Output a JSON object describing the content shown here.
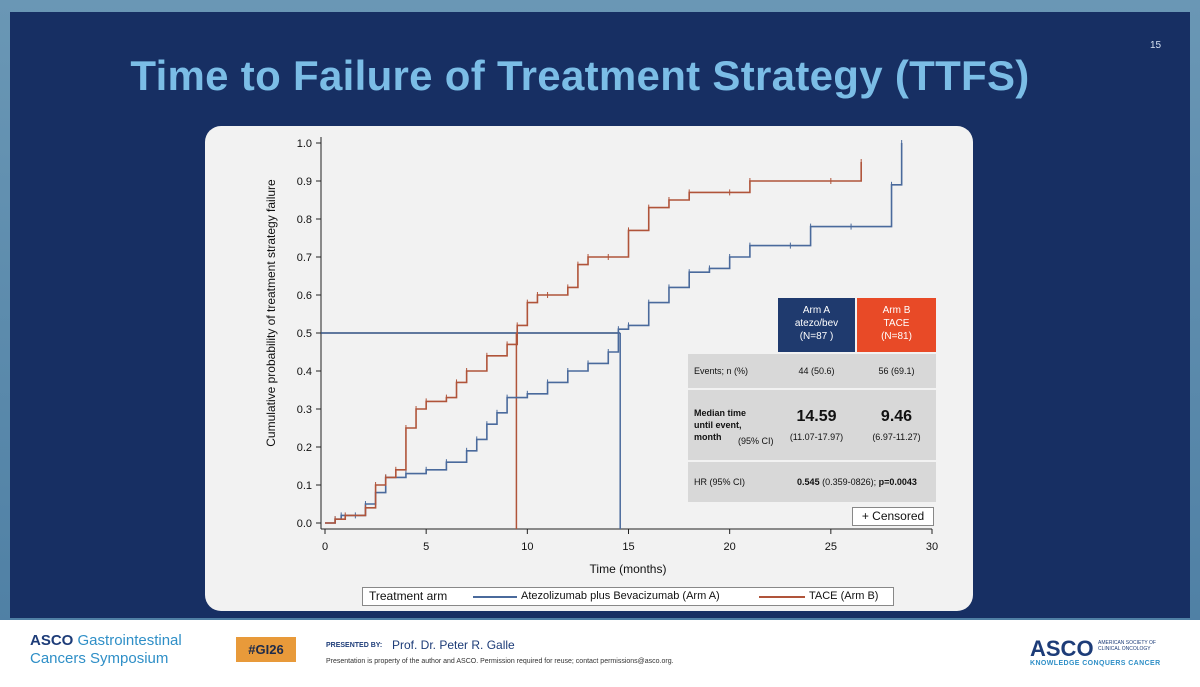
{
  "slide": {
    "number": "15",
    "title": "Time to Failure of Treatment Strategy (TTFS)"
  },
  "chart_data": {
    "type": "line",
    "xlabel": "Time (months)",
    "ylabel": "Cumulative probability of treatment strategy failure",
    "xlim": [
      0,
      30
    ],
    "ylim": [
      0,
      1.0
    ],
    "x_ticks": [
      "0",
      "5",
      "10",
      "15",
      "20",
      "25",
      "30"
    ],
    "y_ticks": [
      "0.0",
      "0.1",
      "0.2",
      "0.3",
      "0.4",
      "0.5",
      "0.6",
      "0.7",
      "0.8",
      "0.9",
      "1.0"
    ],
    "series": [
      {
        "name": "Atezolizumab plus Bevacizumab (Arm A)",
        "color": "#4a6a9c",
        "points": [
          [
            0,
            0
          ],
          [
            0.5,
            0.01
          ],
          [
            0.8,
            0.02
          ],
          [
            1.5,
            0.02
          ],
          [
            2.0,
            0.05
          ],
          [
            2.5,
            0.08
          ],
          [
            3.0,
            0.12
          ],
          [
            4.0,
            0.13
          ],
          [
            5.0,
            0.14
          ],
          [
            6.0,
            0.16
          ],
          [
            7.0,
            0.19
          ],
          [
            7.5,
            0.22
          ],
          [
            8.0,
            0.26
          ],
          [
            8.5,
            0.29
          ],
          [
            9.0,
            0.33
          ],
          [
            10.0,
            0.34
          ],
          [
            11.0,
            0.37
          ],
          [
            12.0,
            0.4
          ],
          [
            13.0,
            0.42
          ],
          [
            14.0,
            0.45
          ],
          [
            14.5,
            0.51
          ],
          [
            15.0,
            0.52
          ],
          [
            16.0,
            0.58
          ],
          [
            17.0,
            0.62
          ],
          [
            18.0,
            0.66
          ],
          [
            19.0,
            0.67
          ],
          [
            20.0,
            0.7
          ],
          [
            21.0,
            0.73
          ],
          [
            23.0,
            0.73
          ],
          [
            24.0,
            0.78
          ],
          [
            26.0,
            0.78
          ],
          [
            28.0,
            0.89
          ],
          [
            28.5,
            1.0
          ]
        ],
        "median": 14.59
      },
      {
        "name": "TACE (Arm B)",
        "color": "#b0543a",
        "points": [
          [
            0,
            0
          ],
          [
            0.5,
            0.01
          ],
          [
            1.0,
            0.02
          ],
          [
            2.0,
            0.04
          ],
          [
            2.5,
            0.1
          ],
          [
            3.0,
            0.12
          ],
          [
            3.5,
            0.14
          ],
          [
            4.0,
            0.25
          ],
          [
            4.5,
            0.3
          ],
          [
            5.0,
            0.32
          ],
          [
            6.0,
            0.33
          ],
          [
            6.5,
            0.37
          ],
          [
            7.0,
            0.4
          ],
          [
            8.0,
            0.44
          ],
          [
            9.0,
            0.47
          ],
          [
            9.5,
            0.52
          ],
          [
            10.0,
            0.58
          ],
          [
            10.5,
            0.6
          ],
          [
            11.0,
            0.6
          ],
          [
            12.0,
            0.62
          ],
          [
            12.5,
            0.68
          ],
          [
            13.0,
            0.7
          ],
          [
            14.0,
            0.7
          ],
          [
            15.0,
            0.77
          ],
          [
            16.0,
            0.83
          ],
          [
            17.0,
            0.85
          ],
          [
            18.0,
            0.87
          ],
          [
            20.0,
            0.87
          ],
          [
            21.0,
            0.9
          ],
          [
            25.0,
            0.9
          ],
          [
            26.5,
            0.95
          ]
        ],
        "median": 9.46
      }
    ],
    "reference_line_y": 0.5,
    "censor_legend": "+ Censored",
    "legend_title": "Treatment arm",
    "legend_placement": "bottom"
  },
  "table": {
    "headers": {
      "a": "Arm A\natezo/bev\n(N=87 )",
      "b": "Arm B\nTACE\n(N=81)"
    },
    "rows": {
      "events_label": "Events; n (%)",
      "events_a": "44 (50.6)",
      "events_b": "56 (69.1)",
      "median_label_bold": "Median time until event, month",
      "median_label_ci": "(95% CI)",
      "median_a": "14.59",
      "median_a_ci": "(11.07-17.97)",
      "median_b": "9.46",
      "median_b_ci": "(6.97-11.27)",
      "hr_label": "HR (95% CI)",
      "hr_value_bold": "0.545",
      "hr_value_ci": "(0.359-0826);",
      "hr_p": "p=0.0043"
    }
  },
  "footer": {
    "asco_brand": "ASCO",
    "event_line1": "Gastrointestinal",
    "event_line2": "Cancers Symposium",
    "hashtag": "#GI26",
    "presented_by": "PRESENTED BY:",
    "presenter": "Prof. Dr. Peter R. Galle",
    "notice": "Presentation is property of the author and ASCO. Permission required for reuse; contact permissions@asco.org.",
    "asco_right": "ASCO",
    "asco_right_full": "AMERICAN SOCIETY OF CLINICAL ONCOLOGY",
    "tagline": "KNOWLEDGE CONQUERS CANCER"
  }
}
